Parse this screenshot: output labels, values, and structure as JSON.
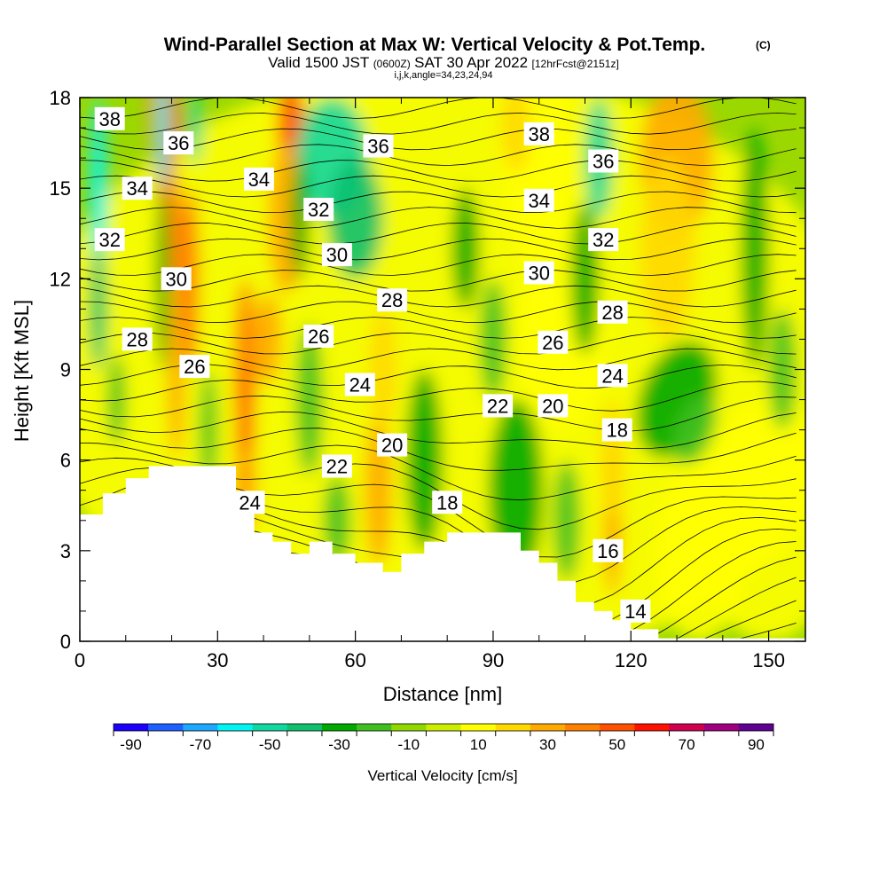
{
  "title": {
    "main": "Wind-Parallel Section at Max W: Vertical Velocity & Pot.Temp.",
    "copyright": "(C)",
    "valid_prefix": "Valid 1500 JST",
    "valid_utc": "(0600Z)",
    "valid_date": "SAT 30 Apr 2022",
    "forecast": "[12hrFcst@2151z]",
    "params": "i,j,k,angle=34,23,24,94"
  },
  "chart_data": {
    "type": "heatmap",
    "xlabel": "Distance [nm]",
    "ylabel": "Height [Kft MSL]",
    "xlim": [
      0,
      158
    ],
    "ylim": [
      0,
      18
    ],
    "x_ticks": [
      "0",
      "30",
      "60",
      "90",
      "120",
      "150"
    ],
    "y_ticks": [
      "0",
      "3",
      "6",
      "9",
      "12",
      "15",
      "18"
    ],
    "colorbar": {
      "label": "Vertical Velocity [cm/s]",
      "tick_labels": [
        "-90",
        "-70",
        "-50",
        "-30",
        "-10",
        "10",
        "30",
        "50",
        "70",
        "90"
      ],
      "colors": [
        "#1c00ff",
        "#1e60ff",
        "#1ca8ff",
        "#00f4f4",
        "#10d8a0",
        "#10c070",
        "#00a800",
        "#40c020",
        "#90d800",
        "#ccec00",
        "#ffff00",
        "#ffd800",
        "#ffaa00",
        "#ff8000",
        "#ff5000",
        "#ff1000",
        "#d00050",
        "#a00080",
        "#600090"
      ]
    },
    "terrain_profile": [
      [
        0,
        4.2
      ],
      [
        5,
        4.2
      ],
      [
        5,
        4.9
      ],
      [
        10,
        4.9
      ],
      [
        10,
        5.4
      ],
      [
        15,
        5.4
      ],
      [
        15,
        5.8
      ],
      [
        34,
        5.8
      ],
      [
        34,
        4.6
      ],
      [
        38,
        4.6
      ],
      [
        38,
        3.6
      ],
      [
        42,
        3.6
      ],
      [
        42,
        3.3
      ],
      [
        46,
        3.3
      ],
      [
        46,
        2.9
      ],
      [
        50,
        2.9
      ],
      [
        50,
        3.3
      ],
      [
        55,
        3.3
      ],
      [
        55,
        2.9
      ],
      [
        60,
        2.9
      ],
      [
        60,
        2.6
      ],
      [
        66,
        2.6
      ],
      [
        66,
        2.3
      ],
      [
        70,
        2.3
      ],
      [
        70,
        2.9
      ],
      [
        75,
        2.9
      ],
      [
        75,
        3.3
      ],
      [
        80,
        3.3
      ],
      [
        80,
        3.6
      ],
      [
        96,
        3.6
      ],
      [
        96,
        3.0
      ],
      [
        100,
        3.0
      ],
      [
        100,
        2.6
      ],
      [
        104,
        2.6
      ],
      [
        104,
        2.0
      ],
      [
        108,
        2.0
      ],
      [
        108,
        1.3
      ],
      [
        112,
        1.3
      ],
      [
        112,
        1.0
      ],
      [
        116,
        1.0
      ],
      [
        116,
        0.7
      ],
      [
        120,
        0.7
      ],
      [
        120,
        0.4
      ],
      [
        126,
        0.4
      ],
      [
        126,
        0.1
      ],
      [
        158,
        0.1
      ]
    ],
    "theta_labels": [
      {
        "text": "38",
        "x": 6.5,
        "y": 17.3
      },
      {
        "text": "36",
        "x": 21.5,
        "y": 16.5
      },
      {
        "text": "36",
        "x": 65,
        "y": 16.4
      },
      {
        "text": "38",
        "x": 100,
        "y": 16.8
      },
      {
        "text": "36",
        "x": 114,
        "y": 15.9
      },
      {
        "text": "34",
        "x": 12.5,
        "y": 15.0
      },
      {
        "text": "34",
        "x": 39,
        "y": 15.3
      },
      {
        "text": "32",
        "x": 52,
        "y": 14.3
      },
      {
        "text": "34",
        "x": 100,
        "y": 14.6
      },
      {
        "text": "32",
        "x": 6.5,
        "y": 13.3
      },
      {
        "text": "32",
        "x": 114,
        "y": 13.3
      },
      {
        "text": "30",
        "x": 21,
        "y": 12.0
      },
      {
        "text": "30",
        "x": 56,
        "y": 12.8
      },
      {
        "text": "30",
        "x": 100,
        "y": 12.2
      },
      {
        "text": "28",
        "x": 12.5,
        "y": 10.0
      },
      {
        "text": "28",
        "x": 68,
        "y": 11.3
      },
      {
        "text": "28",
        "x": 116,
        "y": 10.9
      },
      {
        "text": "26",
        "x": 25,
        "y": 9.1
      },
      {
        "text": "26",
        "x": 52,
        "y": 10.1
      },
      {
        "text": "26",
        "x": 103,
        "y": 9.9
      },
      {
        "text": "24",
        "x": 61,
        "y": 8.5
      },
      {
        "text": "24",
        "x": 116,
        "y": 8.8
      },
      {
        "text": "22",
        "x": 91,
        "y": 7.8
      },
      {
        "text": "20",
        "x": 103,
        "y": 7.8
      },
      {
        "text": "20",
        "x": 68,
        "y": 6.5
      },
      {
        "text": "18",
        "x": 117,
        "y": 7.0
      },
      {
        "text": "22",
        "x": 56,
        "y": 5.8
      },
      {
        "text": "18",
        "x": 80,
        "y": 4.6
      },
      {
        "text": "24",
        "x": 37,
        "y": 4.6
      },
      {
        "text": "16",
        "x": 115,
        "y": 3.0
      },
      {
        "text": "14",
        "x": 121,
        "y": 1.0
      }
    ]
  }
}
